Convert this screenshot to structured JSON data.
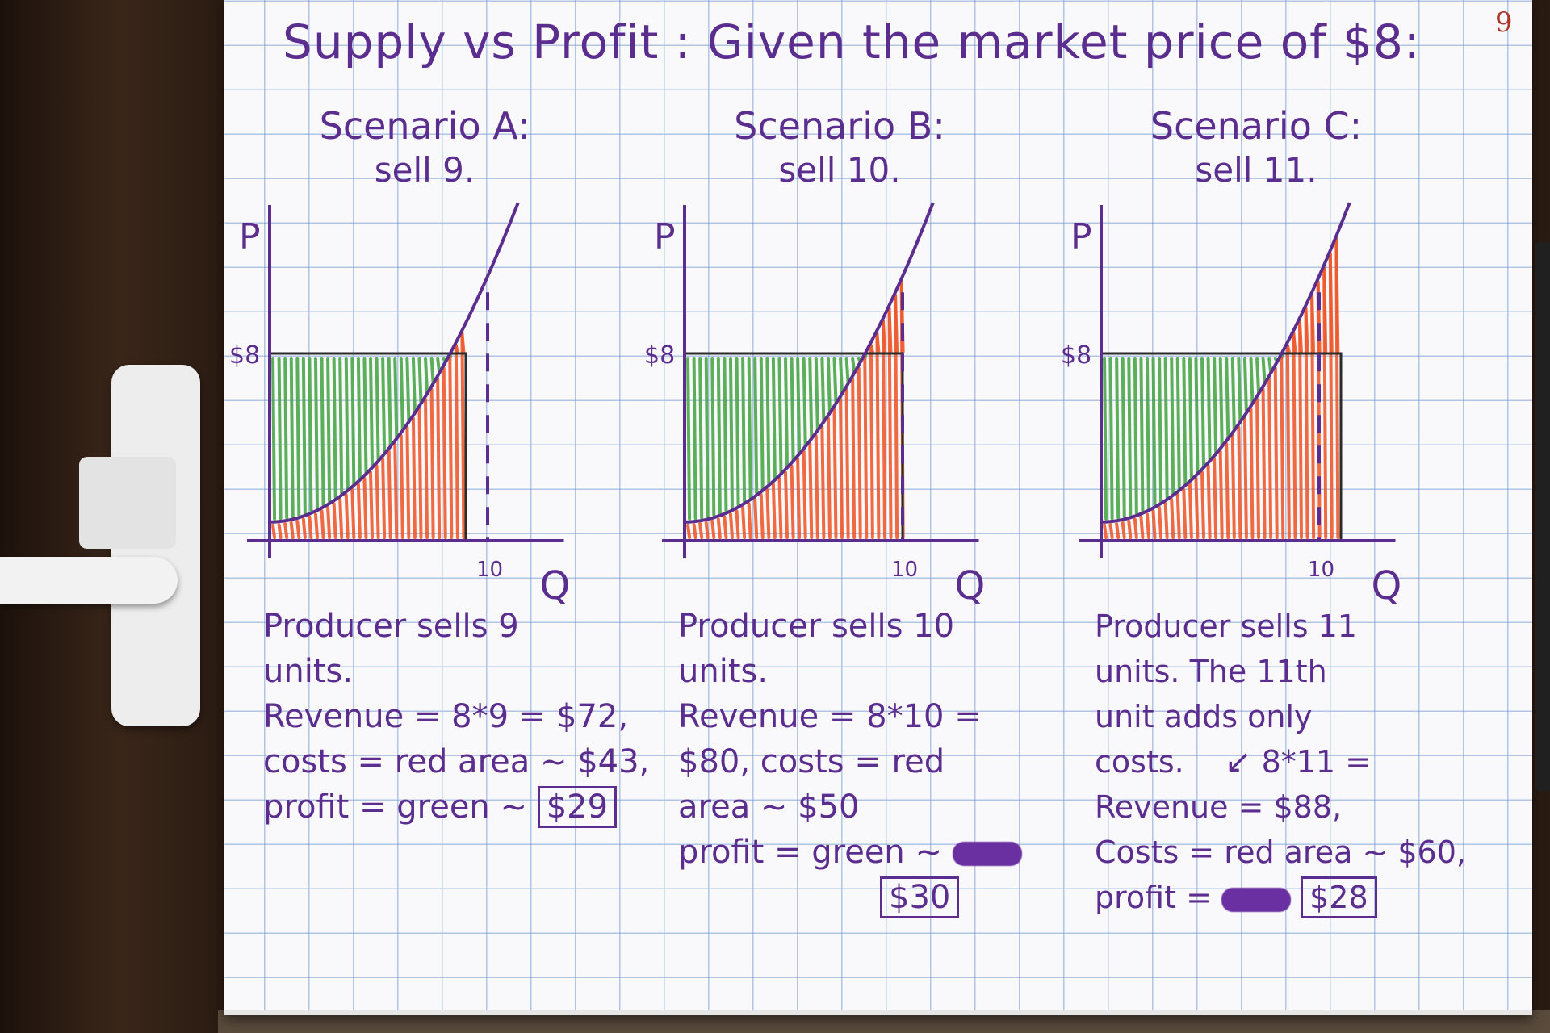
{
  "page_number": "9",
  "title": "Supply vs Profit : Given the market price of $8:",
  "colors": {
    "ink": "#5b2d8e",
    "profit_green": "#4aa84a",
    "cost_red": "#ee5a2e",
    "grid_blue": "#7b9bd2",
    "page_number_red": "#b0362a"
  },
  "panels": [
    {
      "title": "Scenario A:",
      "subtitle": "sell 9.",
      "axis_p": "P",
      "axis_q": "Q",
      "price_tick": "$8",
      "q_tick": "10",
      "text": {
        "line1": "Producer sells 9",
        "line2": "units.",
        "line3": "Revenue = 8*9 = $72,",
        "line4": "costs = red area ~ $43,",
        "line5_label": "profit = green ~",
        "line5_value": "$29"
      }
    },
    {
      "title": "Scenario B:",
      "subtitle": "sell 10.",
      "axis_p": "P",
      "axis_q": "Q",
      "price_tick": "$8",
      "q_tick": "10",
      "text": {
        "line1": "Producer sells 10",
        "line2": "units.",
        "line3": "Revenue = 8*10 =",
        "line4": "$80, costs = red",
        "line5": "area ~ $50",
        "line6_label": "profit = green ~",
        "line7_value": "$30"
      }
    },
    {
      "title": "Scenario C:",
      "subtitle": "sell 11.",
      "axis_p": "P",
      "axis_q": "Q",
      "price_tick": "$8",
      "q_tick": "10",
      "text": {
        "line1": "Producer sells 11",
        "line2": "units. The 11th",
        "line3": "unit adds only",
        "line4": "costs.",
        "line4_note": "8*11 =",
        "line5": "Revenue = $88,",
        "line6": "Costs = red area ~ $60,",
        "line7_label": "profit =",
        "line7_value": "$28"
      }
    }
  ],
  "chart_data": [
    {
      "type": "area",
      "price": 8,
      "quantity_sold": 9,
      "q_marker": 10,
      "revenue": 72,
      "costs": 43,
      "profit": 29
    },
    {
      "type": "area",
      "price": 8,
      "quantity_sold": 10,
      "q_marker": 10,
      "revenue": 80,
      "costs": 50,
      "profit": 30
    },
    {
      "type": "area",
      "price": 8,
      "quantity_sold": 11,
      "q_marker": 10,
      "revenue": 88,
      "costs": 60,
      "profit": 28
    }
  ]
}
